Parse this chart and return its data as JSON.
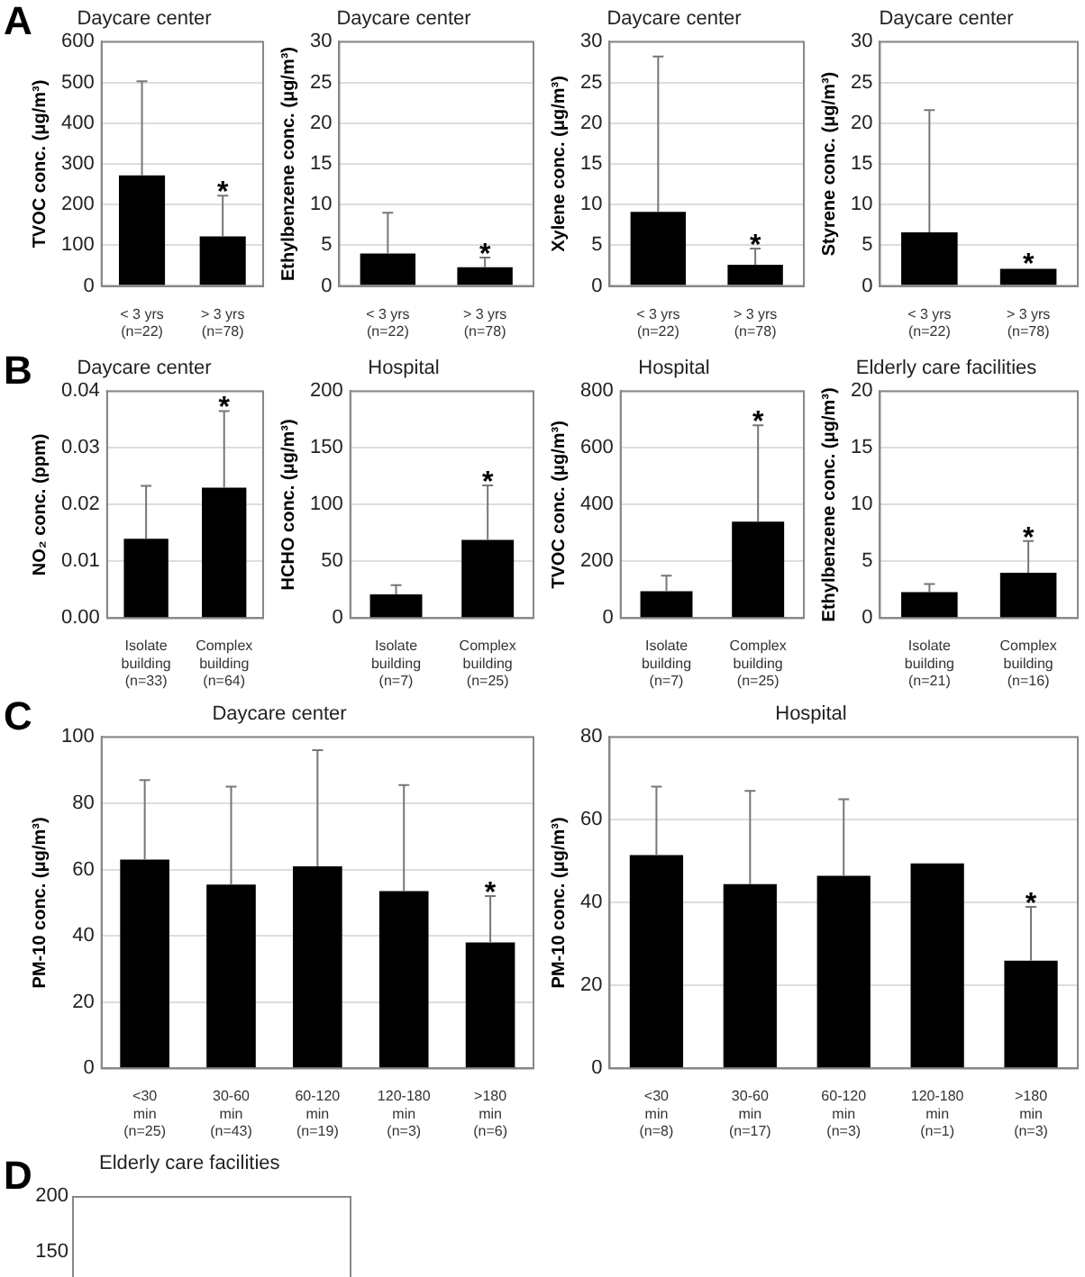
{
  "chart_data": [
    {
      "type": "bar",
      "title": "Daycare center",
      "ylabel": "TVOC conc. (μg/m³)",
      "annotations": [
        "A",
        {
          "text": "*",
          "x": "> 3 yrs\n(n=78)",
          "y": 222
        }
      ],
      "categories": [
        "< 3 yrs\n(n=22)",
        "> 3 yrs\n(n=78)"
      ],
      "values": [
        272,
        122
      ],
      "errors": [
        [
          272,
          503
        ],
        [
          122,
          222
        ]
      ],
      "color": "#000000",
      "ylim": [
        0,
        600
      ],
      "yticks": [
        0,
        100,
        200,
        300,
        400,
        500,
        600
      ],
      "grid": "y"
    },
    {
      "type": "bar",
      "title": "Daycare center",
      "ylabel": "Ethylbenzene conc. (μg/m³)",
      "annotations": [
        {
          "text": "*",
          "x": "> 3 yrs\n(n=78)",
          "y": 3.5
        }
      ],
      "categories": [
        "< 3 yrs\n(n=22)",
        "> 3 yrs\n(n=78)"
      ],
      "values": [
        4.0,
        2.3
      ],
      "errors": [
        [
          4.0,
          9.0
        ],
        [
          2.3,
          3.5
        ]
      ],
      "color": "#000000",
      "ylim": [
        0,
        30
      ],
      "yticks": [
        0,
        5,
        10,
        15,
        20,
        25,
        30
      ],
      "grid": "y"
    },
    {
      "type": "bar",
      "title": "Daycare center",
      "ylabel": "Xylene conc. (μg/m³)",
      "annotations": [
        {
          "text": "*",
          "x": "> 3 yrs\n(n=78)",
          "y": 4.6
        }
      ],
      "categories": [
        "< 3 yrs\n(n=22)",
        "> 3 yrs\n(n=78)"
      ],
      "values": [
        9.1,
        2.6
      ],
      "errors": [
        [
          9.1,
          28.2
        ],
        [
          2.6,
          4.6
        ]
      ],
      "color": "#000000",
      "ylim": [
        0,
        30
      ],
      "yticks": [
        0,
        5,
        10,
        15,
        20,
        25,
        30
      ],
      "grid": "y"
    },
    {
      "type": "bar",
      "title": "Daycare center",
      "ylabel": "Styrene conc. (μg/m³)",
      "annotations": [
        {
          "text": "*",
          "x": "> 3 yrs\n(n=78)",
          "y": 2.3
        }
      ],
      "categories": [
        "< 3 yrs\n(n=22)",
        "> 3 yrs\n(n=78)"
      ],
      "values": [
        6.6,
        2.1
      ],
      "errors": [
        [
          6.6,
          21.6
        ],
        null
      ],
      "color": "#000000",
      "ylim": [
        0,
        30
      ],
      "yticks": [
        0,
        5,
        10,
        15,
        20,
        25,
        30
      ],
      "grid": "y"
    },
    {
      "type": "bar",
      "title": "Daycare center",
      "ylabel": "NO₂ conc. (ppm)",
      "annotations": [
        "B",
        {
          "text": "*",
          "x": "Complex\nbuilding\n(n=64)",
          "y": 0.0365
        }
      ],
      "categories": [
        "Isolate\nbuilding\n(n=33)",
        "Complex\nbuilding\n(n=64)"
      ],
      "values": [
        0.014,
        0.023
      ],
      "errors": [
        [
          0.014,
          0.0233
        ],
        [
          0.023,
          0.0365
        ]
      ],
      "color": "#000000",
      "ylim": [
        0,
        0.04
      ],
      "yticks": [
        {
          "value": 0,
          "label": "0.00"
        },
        {
          "value": 0.01,
          "label": "0.01"
        },
        {
          "value": 0.02,
          "label": "0.02"
        },
        {
          "value": 0.03,
          "label": "0.03"
        },
        {
          "value": 0.04,
          "label": "0.04"
        }
      ],
      "grid": "y"
    },
    {
      "type": "bar",
      "title": "Hospital",
      "ylabel": "HCHO conc. (μg/m³)",
      "annotations": [
        {
          "text": "*",
          "x": "Complex\nbuilding\n(n=25)",
          "y": 117
        }
      ],
      "categories": [
        "Isolate\nbuilding\n(n=7)",
        "Complex\nbuilding\n(n=25)"
      ],
      "values": [
        21,
        69
      ],
      "errors": [
        [
          21,
          29
        ],
        [
          69,
          117
        ]
      ],
      "color": "#000000",
      "ylim": [
        0,
        200
      ],
      "yticks": [
        0,
        50,
        100,
        150,
        200
      ],
      "grid": "y"
    },
    {
      "type": "bar",
      "title": "Hospital",
      "ylabel": "TVOC conc. (μg/m³)",
      "annotations": [
        {
          "text": "*",
          "x": "Complex\nbuilding\n(n=25)",
          "y": 680
        }
      ],
      "categories": [
        "Isolate\nbuilding\n(n=7)",
        "Complex\nbuilding\n(n=25)"
      ],
      "values": [
        95,
        340
      ],
      "errors": [
        [
          95,
          150
        ],
        [
          340,
          680
        ]
      ],
      "color": "#000000",
      "ylim": [
        0,
        800
      ],
      "yticks": [
        0,
        200,
        400,
        600,
        800
      ],
      "grid": "y"
    },
    {
      "type": "bar",
      "title": "Elderly care facilities",
      "ylabel": "Ethylbenzene conc. (μg/m³)",
      "annotations": [
        {
          "text": "*",
          "x": "Complex\nbuilding\n(n=16)",
          "y": 6.8
        }
      ],
      "categories": [
        "Isolate\nbuilding\n(n=21)",
        "Complex\nbuilding\n(n=16)"
      ],
      "values": [
        2.3,
        4.0
      ],
      "errors": [
        [
          2.3,
          3.0
        ],
        [
          4.0,
          6.8
        ]
      ],
      "color": "#000000",
      "ylim": [
        0,
        20
      ],
      "yticks": [
        0,
        5,
        10,
        15,
        20
      ],
      "grid": "y"
    },
    {
      "type": "bar",
      "title": "Daycare center",
      "ylabel": "PM-10 conc. (μg/m³)",
      "annotations": [
        "C",
        {
          "text": "*",
          "x": ">180\nmin\n(n=6)",
          "y": 52
        }
      ],
      "categories": [
        "<30\nmin\n(n=25)",
        "30-60\nmin\n(n=43)",
        "60-120\nmin\n(n=19)",
        "120-180\nmin\n(n=3)",
        ">180\nmin\n(n=6)"
      ],
      "values": [
        63,
        55.5,
        61,
        53.5,
        38
      ],
      "errors": [
        [
          63,
          87
        ],
        [
          55.5,
          85
        ],
        [
          61,
          96
        ],
        [
          53.5,
          85.5
        ],
        [
          38,
          52
        ]
      ],
      "color": "#000000",
      "ylim": [
        0,
        100
      ],
      "yticks": [
        0,
        20,
        40,
        60,
        80,
        100
      ],
      "grid": "y"
    },
    {
      "type": "bar",
      "title": "Hospital",
      "ylabel": "PM-10 conc. (μg/m³)",
      "annotations": [
        {
          "text": "*",
          "x": ">180\nmin\n(n=3)",
          "y": 39
        }
      ],
      "categories": [
        "<30\nmin\n(n=8)",
        "30-60\nmin\n(n=17)",
        "60-120\nmin\n(n=3)",
        "120-180\nmin\n(n=1)",
        ">180\nmin\n(n=3)"
      ],
      "values": [
        51.5,
        44.5,
        46.5,
        49.5,
        26
      ],
      "errors": [
        [
          51.5,
          68
        ],
        [
          44.5,
          67
        ],
        [
          46.5,
          65
        ],
        null,
        [
          26,
          39
        ]
      ],
      "color": "#000000",
      "ylim": [
        0,
        80
      ],
      "yticks": [
        0,
        20,
        40,
        60,
        80
      ],
      "grid": "y"
    },
    {
      "type": "other",
      "title": "Elderly care facilities",
      "annotations": [
        "D",
        "200",
        "150"
      ]
    }
  ]
}
